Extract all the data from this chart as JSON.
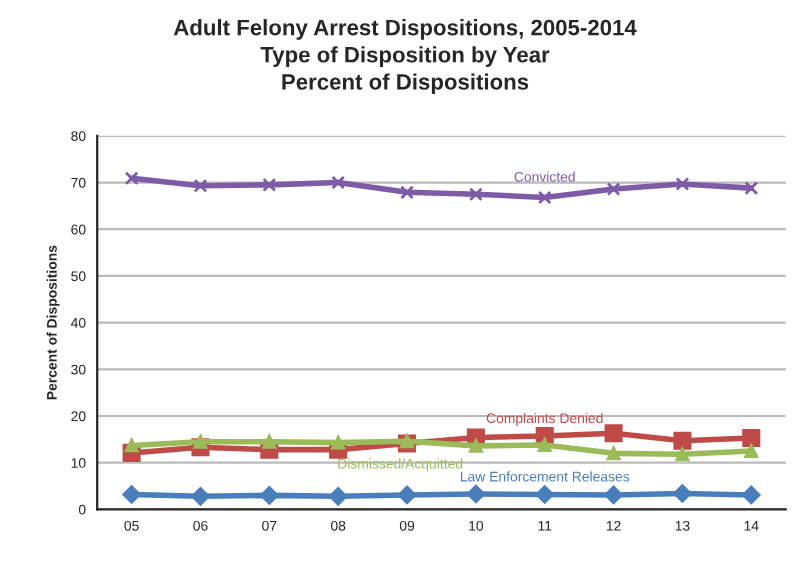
{
  "chart_data": {
    "type": "line",
    "title": "Adult Felony Arrest Dispositions, 2005-2014\nType of Disposition by Year\nPercent of Dispositions",
    "ylabel": "Percent of Dispositions",
    "categories": [
      "05",
      "06",
      "07",
      "08",
      "09",
      "10",
      "11",
      "12",
      "13",
      "14"
    ],
    "series": [
      {
        "name": "Convicted",
        "color": "#7d5ba6",
        "marker": "cross",
        "values": [
          70.9,
          69.3,
          69.5,
          70.0,
          67.9,
          67.5,
          66.8,
          68.6,
          69.7,
          68.8
        ]
      },
      {
        "name": "Complaints Denied",
        "color": "#be4b48",
        "marker": "square",
        "values": [
          12.1,
          13.3,
          12.8,
          12.8,
          14.1,
          15.4,
          15.7,
          16.3,
          14.7,
          15.3
        ]
      },
      {
        "name": "Dismissed/Acquitted",
        "color": "#9bbb59",
        "marker": "triangle",
        "values": [
          13.7,
          14.5,
          14.5,
          14.3,
          14.6,
          13.6,
          13.8,
          12.0,
          11.8,
          12.5
        ]
      },
      {
        "name": "Law Enforcement Releases",
        "color": "#4a7ebb",
        "marker": "diamond",
        "values": [
          3.2,
          2.8,
          3.0,
          2.8,
          3.1,
          3.3,
          3.2,
          3.1,
          3.4,
          3.1
        ]
      }
    ],
    "ylim": [
      0,
      80
    ],
    "yticks": [
      0,
      10,
      20,
      30,
      40,
      50,
      60,
      70,
      80
    ],
    "grid": "y",
    "legend": false
  }
}
